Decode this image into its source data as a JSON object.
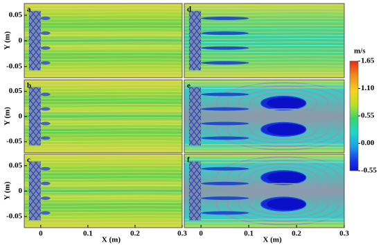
{
  "chart_data": [
    {
      "type": "field",
      "label": "a",
      "xlim": [
        -0.035,
        0.3
      ],
      "ylim": [
        -0.072,
        0.073
      ],
      "yticks": [
        -0.05,
        0,
        0.05
      ],
      "ylabel": "Y (m)"
    },
    {
      "type": "field",
      "label": "b",
      "xlim": [
        -0.035,
        0.3
      ],
      "ylim": [
        -0.072,
        0.073
      ],
      "yticks": [
        -0.05,
        0,
        0.05
      ],
      "ylabel": "Y (m)"
    },
    {
      "type": "field",
      "label": "c",
      "xlim": [
        -0.035,
        0.3
      ],
      "ylim": [
        -0.072,
        0.073
      ],
      "yticks": [
        -0.05,
        0,
        0.05
      ],
      "ylabel": "Y (m)",
      "xticks": [
        0,
        0.1,
        0.2,
        0.3
      ],
      "xlabel": "X (m)"
    },
    {
      "type": "field",
      "label": "d",
      "xlim": [
        -0.035,
        0.3
      ],
      "ylim": [
        -0.072,
        0.073
      ]
    },
    {
      "type": "field",
      "label": "e",
      "xlim": [
        -0.035,
        0.3
      ],
      "ylim": [
        -0.072,
        0.073
      ]
    },
    {
      "type": "field",
      "label": "f",
      "xlim": [
        -0.035,
        0.3
      ],
      "ylim": [
        -0.072,
        0.073
      ],
      "xticks": [
        0,
        0.1,
        0.2,
        0.3
      ],
      "xlabel": "X (m)"
    },
    {
      "type": "colorbar",
      "title": "m/s",
      "ylim": [
        -0.55,
        1.65
      ],
      "yticks": [
        1.65,
        {
          "value": 1.1,
          "label": "1.10"
        },
        0.55,
        {
          "value": 0,
          "label": "0.00"
        },
        -0.55
      ]
    }
  ]
}
